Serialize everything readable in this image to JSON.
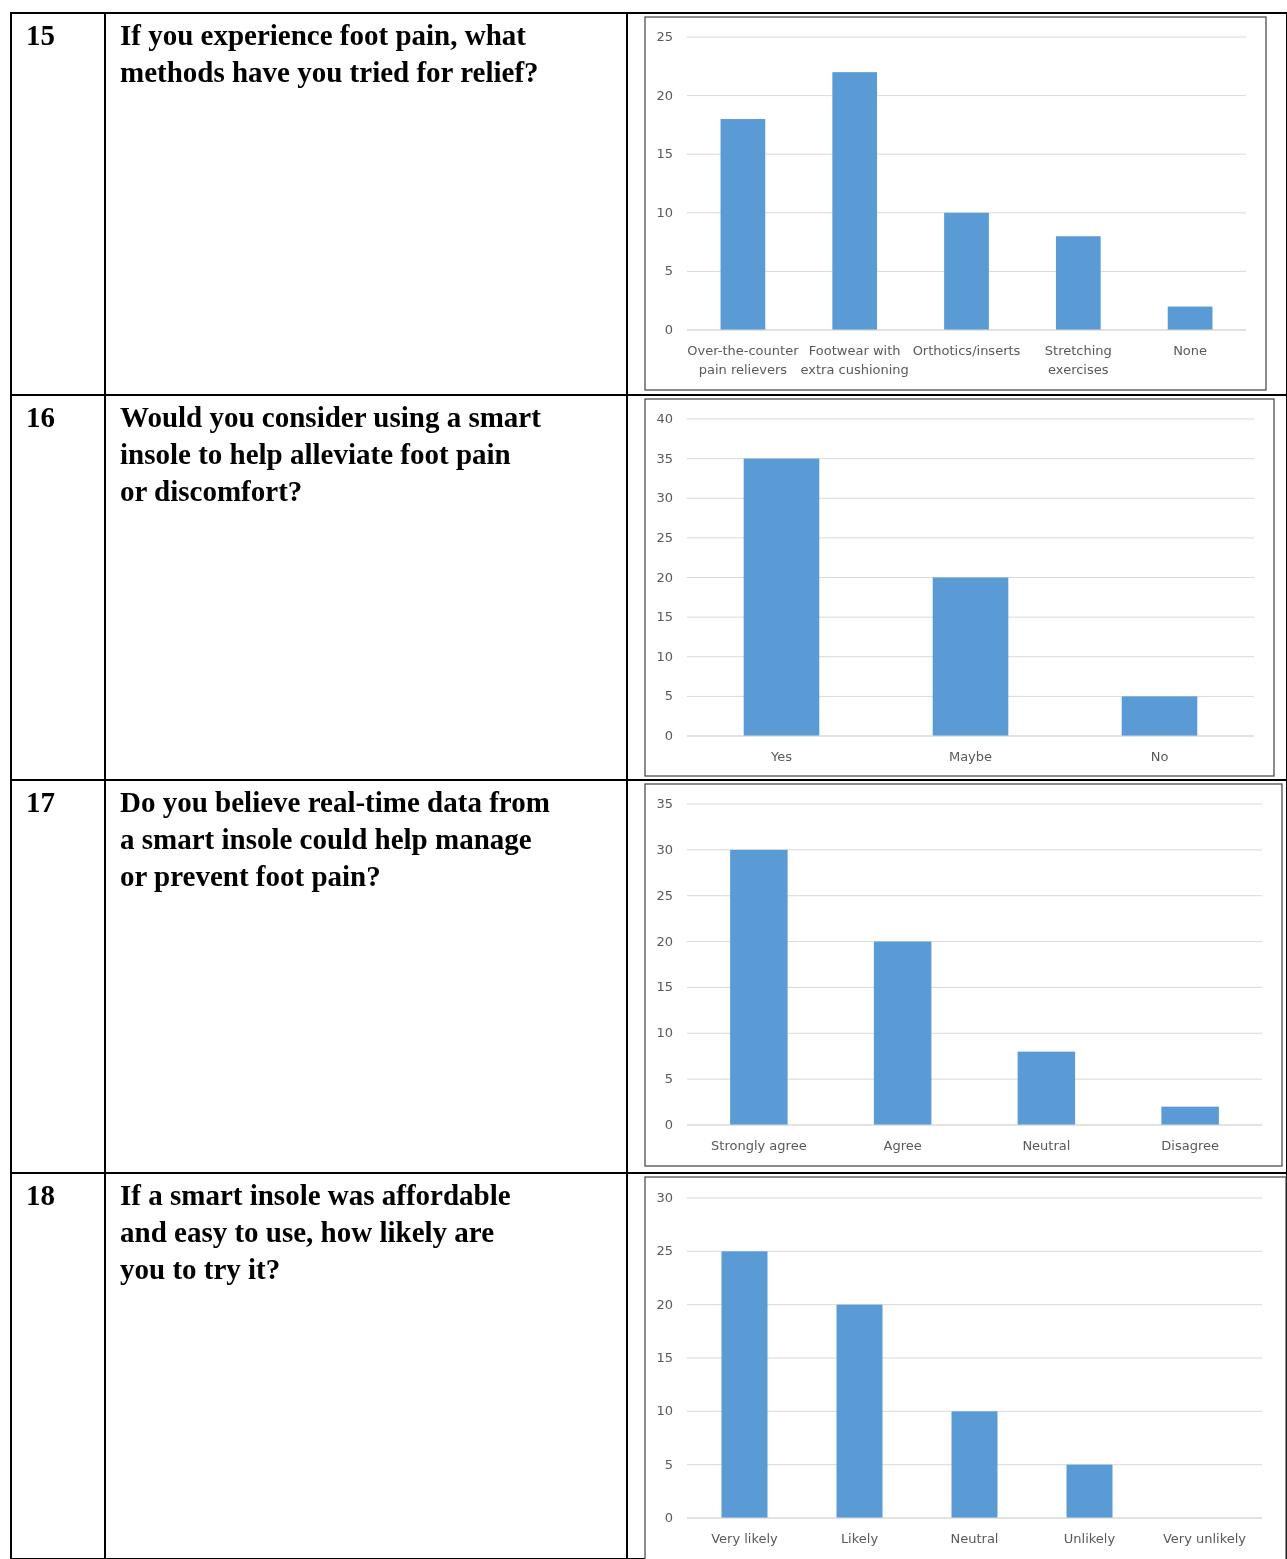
{
  "chart_data": [
    {
      "type": "bar",
      "title": "If you experience foot pain, what methods have you tried for relief?",
      "annotations": [
        "15"
      ],
      "categories": [
        "Over-the-counter pain relievers",
        "Footwear with extra cushioning",
        "Orthotics/inserts",
        "Stretching exercises",
        "None"
      ],
      "values": [
        18,
        22,
        10,
        8,
        2
      ],
      "color": "#5b9bd5",
      "ylim": [
        0,
        25
      ],
      "yticks": [
        0,
        5,
        10,
        15,
        20,
        25
      ],
      "grid": "y"
    },
    {
      "type": "bar",
      "title": "Would you consider using a smart insole to help alleviate foot pain or discomfort?",
      "annotations": [
        "16"
      ],
      "categories": [
        "Yes",
        "Maybe",
        "No"
      ],
      "values": [
        35,
        20,
        5
      ],
      "color": "#5b9bd5",
      "ylim": [
        0,
        40
      ],
      "yticks": [
        0,
        5,
        10,
        15,
        20,
        25,
        30,
        35,
        40
      ],
      "grid": "y"
    },
    {
      "type": "bar",
      "title": "Do you believe real-time data from a smart insole could help manage or prevent foot pain?",
      "annotations": [
        "17"
      ],
      "categories": [
        "Strongly agree",
        "Agree",
        "Neutral",
        "Disagree"
      ],
      "values": [
        30,
        20,
        8,
        2
      ],
      "color": "#5b9bd5",
      "ylim": [
        0,
        35
      ],
      "yticks": [
        0,
        5,
        10,
        15,
        20,
        25,
        30,
        35
      ],
      "grid": "y"
    },
    {
      "type": "bar",
      "title": "If a smart insole was affordable and easy to use, how likely are you to try it?",
      "annotations": [
        "18"
      ],
      "categories": [
        "Very likely",
        "Likely",
        "Neutral",
        "Unlikely",
        "Very unlikely"
      ],
      "values": [
        25,
        20,
        10,
        5,
        0
      ],
      "color": "#5b9bd5",
      "ylim": [
        0,
        30
      ],
      "yticks": [
        0,
        5,
        10,
        15,
        20,
        25,
        30
      ],
      "grid": "y"
    }
  ]
}
